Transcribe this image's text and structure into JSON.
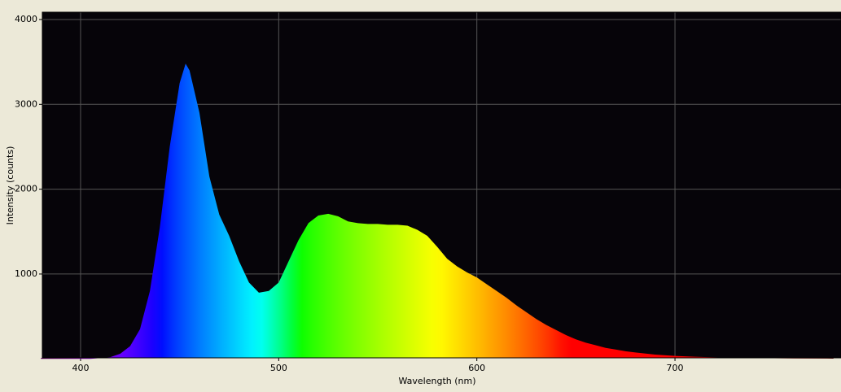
{
  "chart_data": {
    "type": "area",
    "xlabel": "Wavelength (nm)",
    "ylabel": "Intensity (counts)",
    "x": [
      380,
      400,
      405,
      410,
      415,
      420,
      425,
      430,
      435,
      440,
      445,
      450,
      453,
      455,
      460,
      465,
      470,
      475,
      480,
      485,
      490,
      495,
      500,
      505,
      510,
      515,
      520,
      525,
      530,
      535,
      540,
      545,
      550,
      555,
      560,
      565,
      570,
      575,
      580,
      585,
      590,
      595,
      600,
      605,
      610,
      615,
      620,
      625,
      630,
      635,
      640,
      645,
      650,
      655,
      660,
      665,
      670,
      675,
      680,
      690,
      700,
      710,
      720,
      730,
      740,
      760,
      780
    ],
    "values": [
      0,
      0,
      0,
      10,
      20,
      60,
      150,
      350,
      800,
      1550,
      2500,
      3250,
      3480,
      3400,
      2900,
      2150,
      1700,
      1450,
      1150,
      900,
      780,
      800,
      900,
      1150,
      1400,
      1600,
      1690,
      1710,
      1680,
      1620,
      1600,
      1590,
      1590,
      1580,
      1580,
      1570,
      1520,
      1450,
      1320,
      1180,
      1090,
      1020,
      960,
      880,
      800,
      720,
      630,
      550,
      470,
      400,
      340,
      280,
      230,
      190,
      160,
      130,
      110,
      90,
      75,
      50,
      35,
      25,
      18,
      12,
      10,
      5,
      3
    ],
    "xlim": [
      380.7,
      783.8
    ],
    "ylim": [
      12,
      4086
    ],
    "xticks": [
      400,
      500,
      600,
      700
    ],
    "yticks": [
      1000,
      2000,
      3000,
      4000
    ],
    "grid": true,
    "fill": "spectrum"
  }
}
